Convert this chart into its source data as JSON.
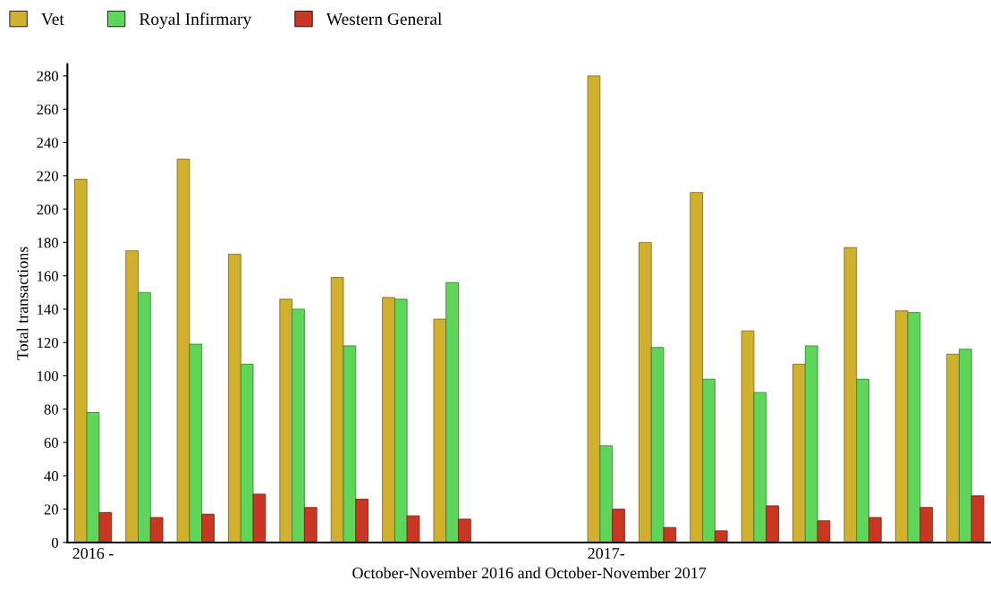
{
  "chart_data": {
    "type": "bar",
    "xlabel": "October-November 2016 and October-November 2017",
    "ylabel": "Total transactions",
    "categories": [
      "2016 -",
      null,
      null,
      null,
      null,
      null,
      null,
      null,
      null,
      null,
      "2017-",
      null,
      null,
      null,
      null,
      null,
      null,
      null
    ],
    "series": [
      {
        "name": "Vet",
        "color": "#d1b02e",
        "values": [
          218,
          175,
          230,
          173,
          146,
          159,
          147,
          134,
          null,
          null,
          280,
          180,
          210,
          127,
          107,
          177,
          139,
          113
        ]
      },
      {
        "name": "Royal Infirmary",
        "color": "#5fd65a",
        "values": [
          78,
          150,
          119,
          107,
          140,
          118,
          146,
          156,
          null,
          null,
          58,
          117,
          98,
          90,
          118,
          98,
          138,
          116
        ]
      },
      {
        "name": "Western General",
        "color": "#c93622",
        "values": [
          18,
          15,
          17,
          29,
          21,
          26,
          16,
          14,
          null,
          null,
          20,
          9,
          7,
          22,
          13,
          15,
          21,
          28
        ]
      }
    ],
    "ylim": [
      0,
      287
    ],
    "yticks": [
      0,
      20,
      40,
      60,
      80,
      100,
      120,
      140,
      160,
      180,
      200,
      220,
      240,
      260,
      280
    ],
    "grid": false,
    "legend": "top left"
  }
}
